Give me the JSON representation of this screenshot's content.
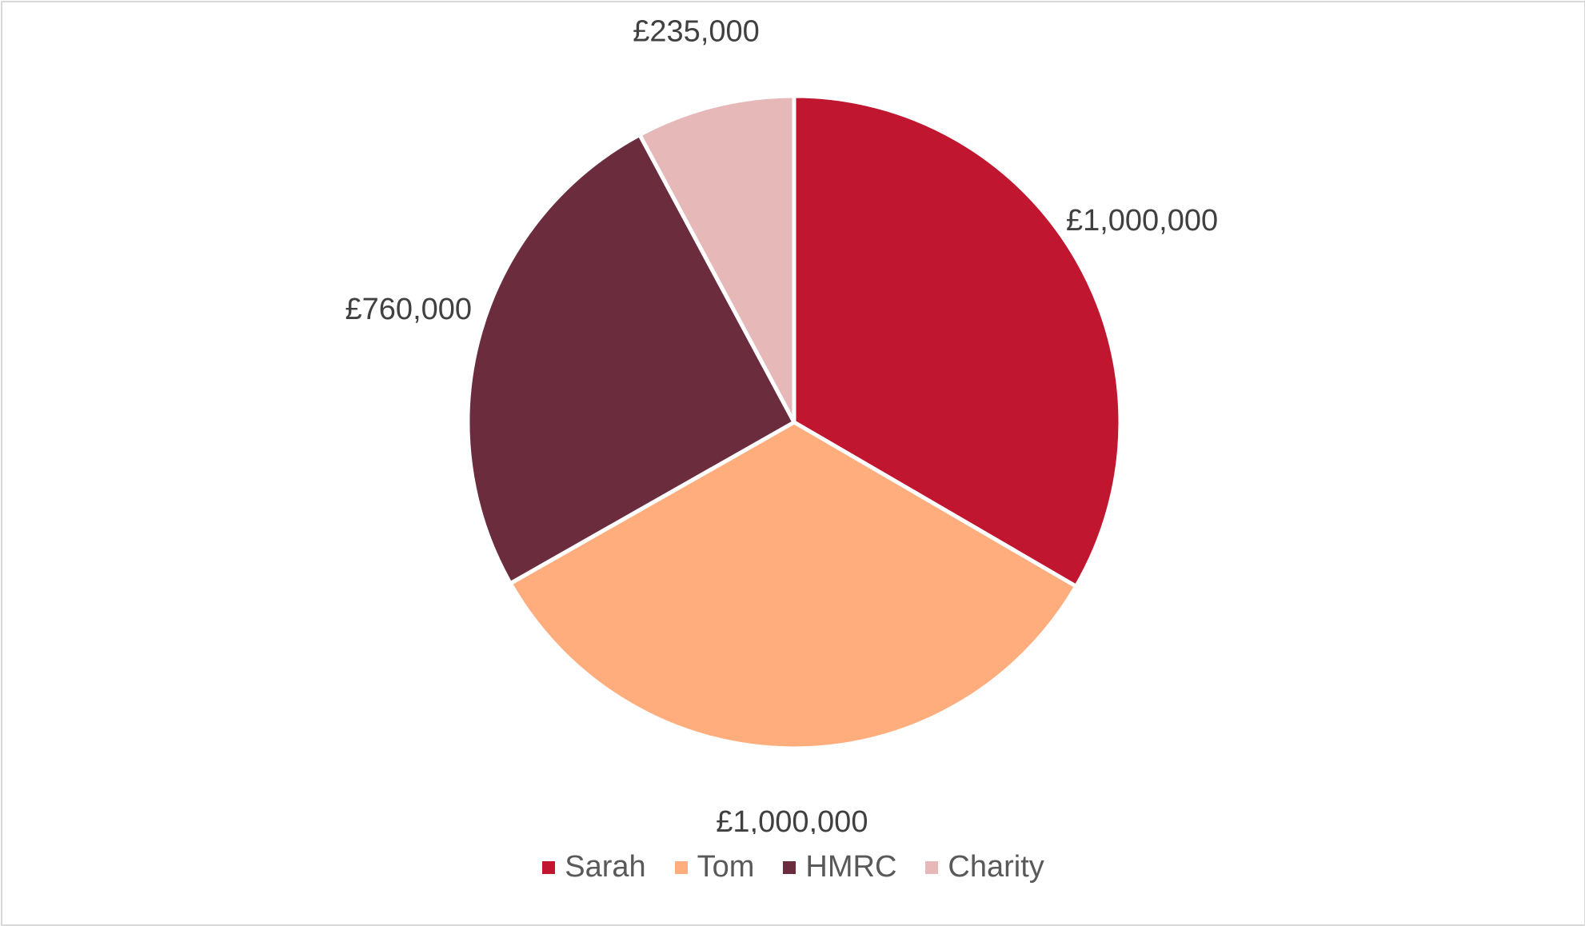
{
  "chart_data": {
    "type": "pie",
    "categories": [
      "Sarah",
      "Tom",
      "HMRC",
      "Charity"
    ],
    "values": [
      1000000,
      1000000,
      760000,
      235000
    ],
    "data_labels": [
      "£1,000,000",
      "£1,000,000",
      "£760,000",
      "£235,000"
    ],
    "colors": [
      "#c0162f",
      "#ffad7c",
      "#6b2d3e",
      "#e6b8b8"
    ],
    "title": "",
    "legend_position": "bottom",
    "start_angle": "12 o'clock, clockwise"
  }
}
